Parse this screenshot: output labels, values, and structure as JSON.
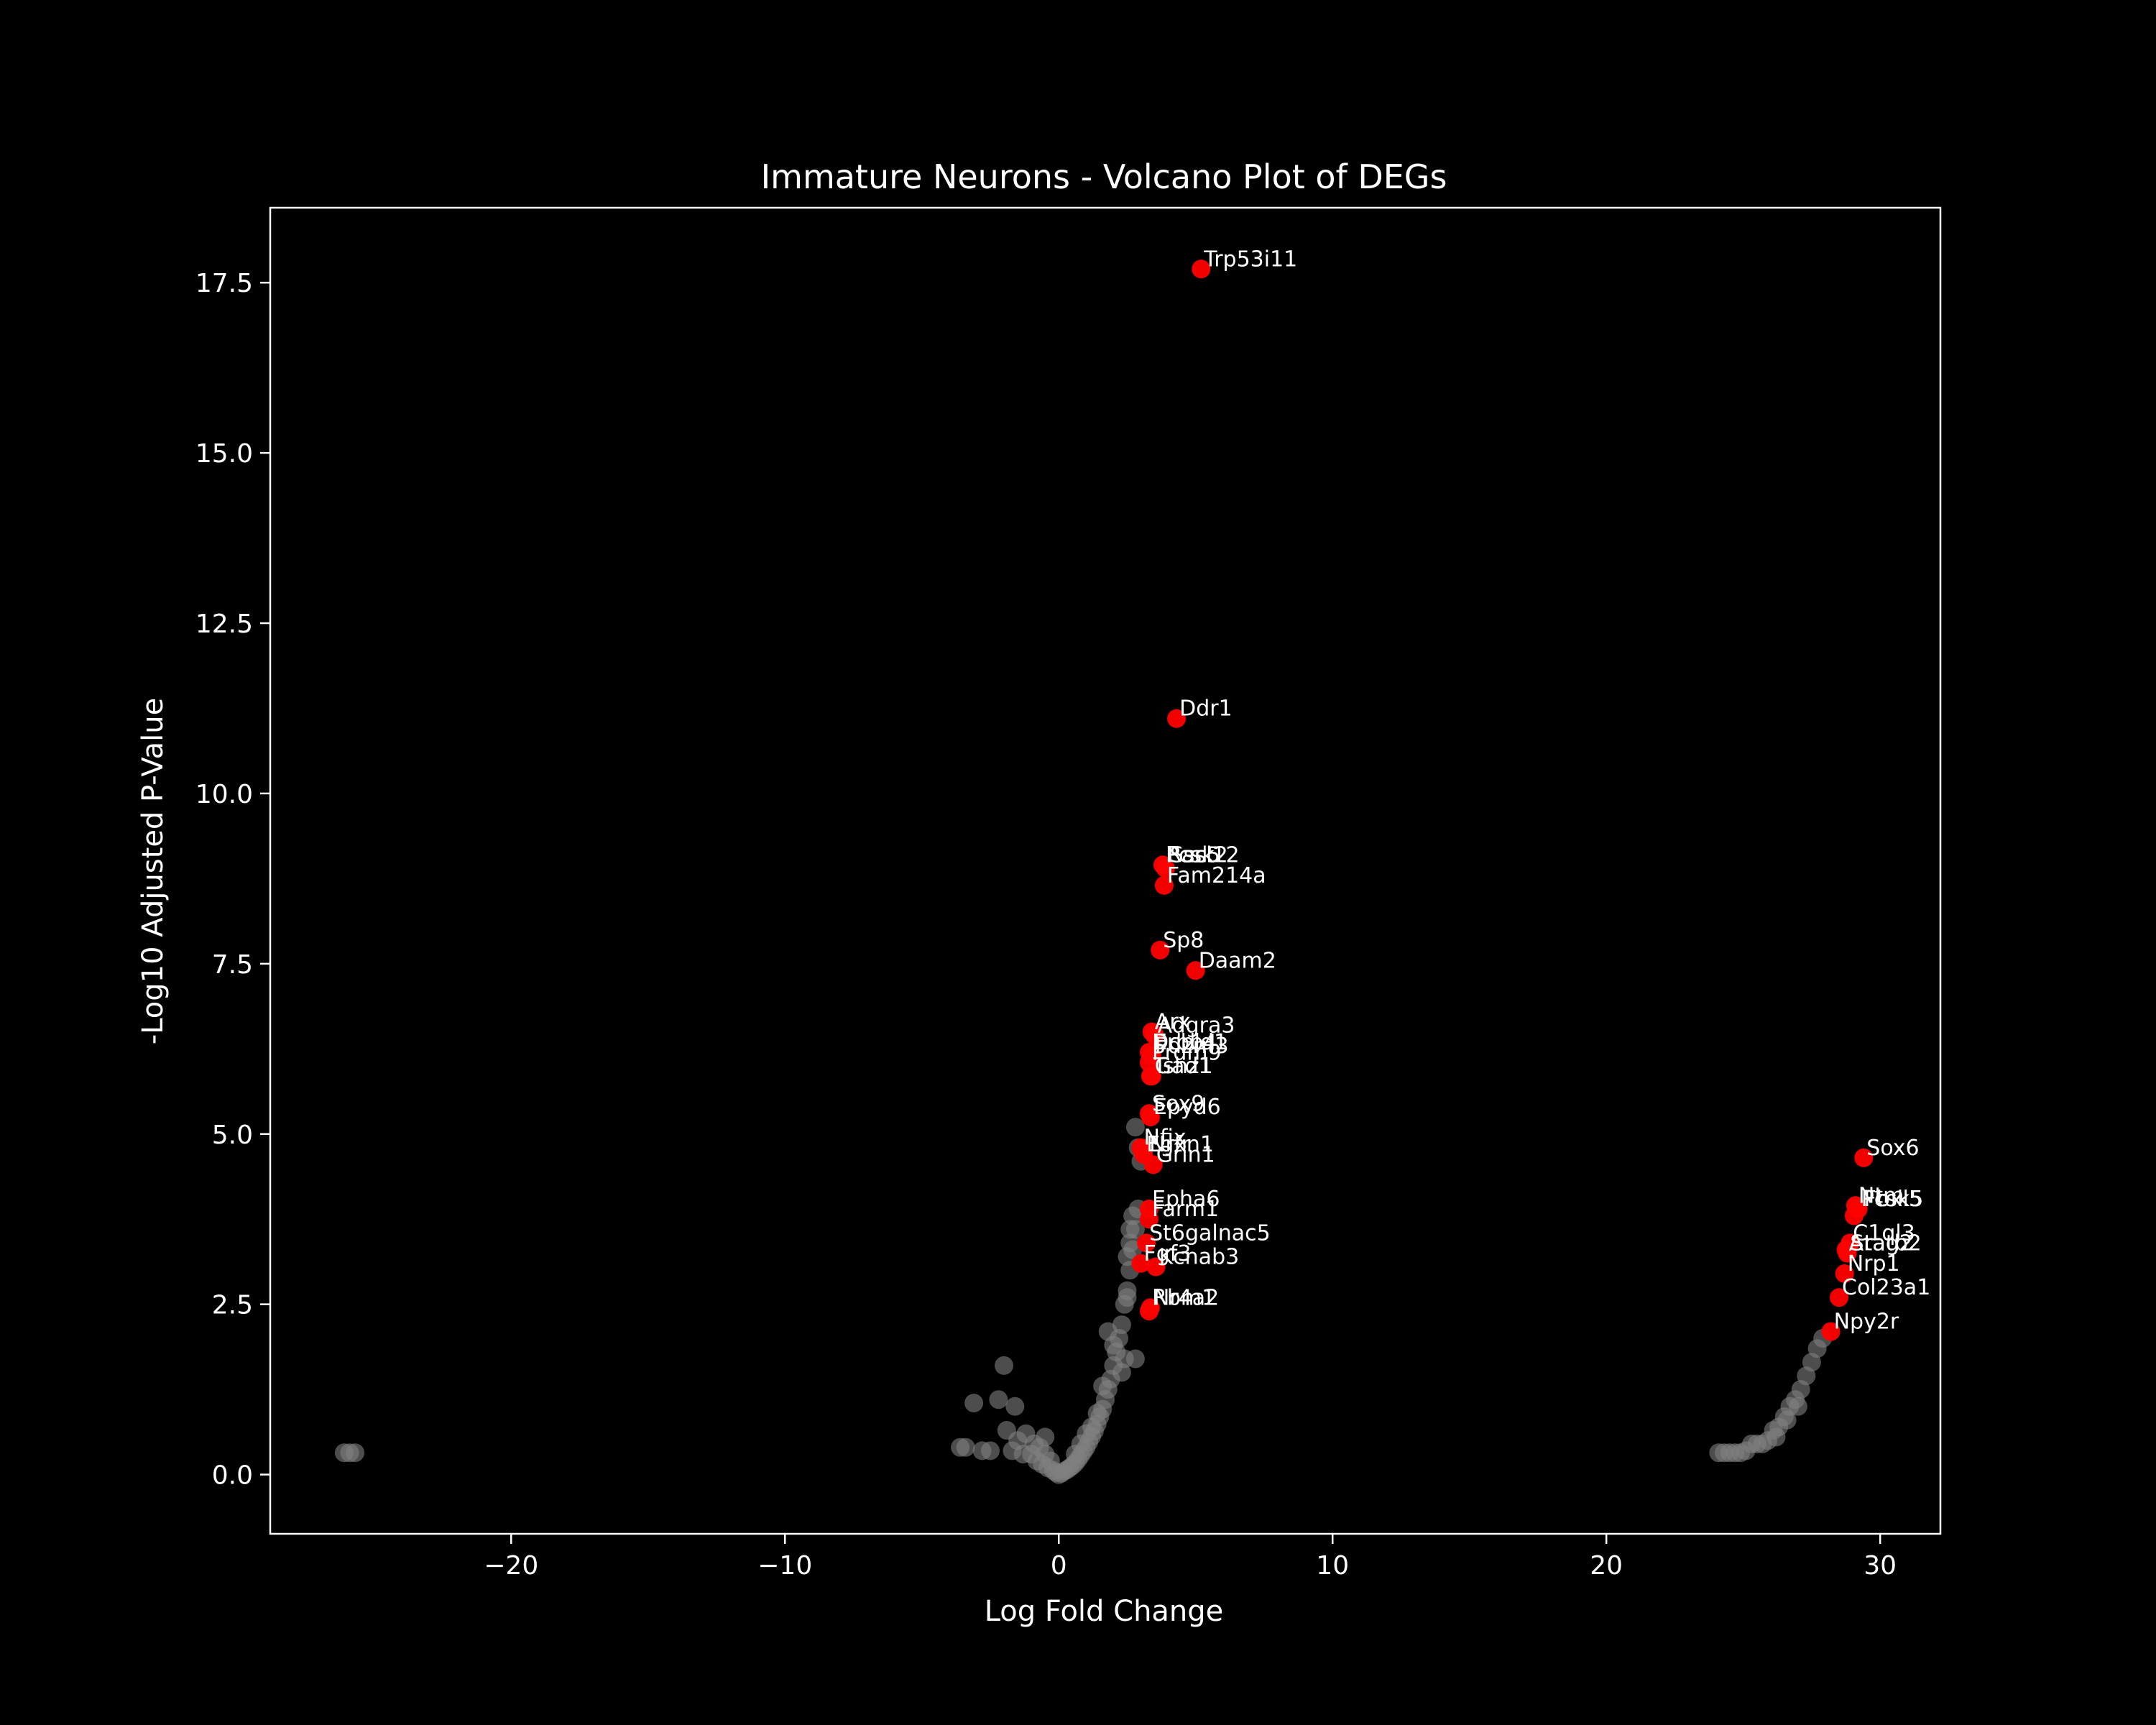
{
  "chart_data": {
    "type": "scatter",
    "title": "Immature Neurons - Volcano Plot of DEGs",
    "xlabel": "Log Fold Change",
    "ylabel": "-Log10 Adjusted P-Value",
    "xlim": [
      -28.8,
      32.2
    ],
    "ylim": [
      -0.87,
      18.6
    ],
    "xticks": [
      -20,
      -10,
      0,
      10,
      20,
      30
    ],
    "xtick_labels": [
      "−20",
      "−10",
      "0",
      "10",
      "20",
      "30"
    ],
    "yticks": [
      0.0,
      2.5,
      5.0,
      7.5,
      10.0,
      12.5,
      15.0,
      17.5
    ],
    "ytick_labels": [
      "0.0",
      "2.5",
      "5.0",
      "7.5",
      "10.0",
      "12.5",
      "15.0",
      "17.5"
    ],
    "grid": false,
    "colors": {
      "background": "#000000",
      "non_significant": "#808080",
      "significant": "#ff0000",
      "text": "#ffffff"
    },
    "series": [
      {
        "color": "#808080",
        "points": [
          [
            -26.1,
            0.32
          ],
          [
            -25.9,
            0.32
          ],
          [
            -25.7,
            0.32
          ],
          [
            -3.6,
            0.4
          ],
          [
            -3.4,
            0.4
          ],
          [
            -3.1,
            1.05
          ],
          [
            -2.8,
            0.35
          ],
          [
            -2.5,
            0.35
          ],
          [
            -2.2,
            1.1
          ],
          [
            -2.0,
            1.6
          ],
          [
            -1.9,
            0.65
          ],
          [
            -1.7,
            0.35
          ],
          [
            -1.6,
            1.0
          ],
          [
            -1.5,
            0.5
          ],
          [
            -1.3,
            0.3
          ],
          [
            -1.2,
            0.6
          ],
          [
            -1.0,
            0.3
          ],
          [
            -0.9,
            0.45
          ],
          [
            -0.8,
            0.2
          ],
          [
            -0.7,
            0.4
          ],
          [
            -0.6,
            0.15
          ],
          [
            -0.5,
            0.3
          ],
          [
            -0.4,
            0.1
          ],
          [
            -0.3,
            0.2
          ],
          [
            -0.2,
            0.06
          ],
          [
            -0.1,
            0.03
          ],
          [
            0.0,
            0.0
          ],
          [
            0.1,
            0.02
          ],
          [
            0.2,
            0.05
          ],
          [
            0.3,
            0.07
          ],
          [
            0.4,
            0.1
          ],
          [
            0.5,
            0.13
          ],
          [
            0.6,
            0.17
          ],
          [
            0.7,
            0.22
          ],
          [
            0.8,
            0.28
          ],
          [
            0.9,
            0.34
          ],
          [
            1.0,
            0.4
          ],
          [
            1.1,
            0.48
          ],
          [
            1.2,
            0.56
          ],
          [
            1.3,
            0.64
          ],
          [
            1.4,
            0.74
          ],
          [
            1.5,
            0.85
          ],
          [
            1.6,
            0.96
          ],
          [
            1.7,
            1.1
          ],
          [
            1.8,
            1.25
          ],
          [
            1.9,
            1.4
          ],
          [
            2.0,
            1.6
          ],
          [
            2.1,
            1.8
          ],
          [
            2.2,
            2.0
          ],
          [
            2.3,
            2.2
          ],
          [
            2.4,
            2.5
          ],
          [
            2.5,
            2.7
          ],
          [
            2.6,
            3.0
          ],
          [
            2.7,
            3.3
          ],
          [
            2.8,
            3.6
          ],
          [
            2.9,
            3.9
          ],
          [
            1.8,
            2.1
          ],
          [
            2.0,
            1.9
          ],
          [
            2.4,
            1.7
          ],
          [
            2.8,
            1.7
          ],
          [
            1.6,
            1.3
          ],
          [
            2.3,
            1.5
          ],
          [
            2.5,
            3.2
          ],
          [
            2.6,
            3.4
          ],
          [
            2.7,
            3.8
          ],
          [
            2.9,
            4.8
          ],
          [
            2.8,
            5.1
          ],
          [
            3.0,
            4.6
          ],
          [
            2.6,
            3.6
          ],
          [
            2.5,
            2.6
          ],
          [
            1.4,
            0.9
          ],
          [
            1.2,
            0.7
          ],
          [
            1.0,
            0.6
          ],
          [
            0.8,
            0.45
          ],
          [
            0.6,
            0.3
          ],
          [
            -0.5,
            0.55
          ],
          [
            24.1,
            0.32
          ],
          [
            24.3,
            0.32
          ],
          [
            24.5,
            0.32
          ],
          [
            24.7,
            0.32
          ],
          [
            24.9,
            0.32
          ],
          [
            25.1,
            0.35
          ],
          [
            25.3,
            0.45
          ],
          [
            25.5,
            0.45
          ],
          [
            25.7,
            0.45
          ],
          [
            25.9,
            0.5
          ],
          [
            26.1,
            0.65
          ],
          [
            26.3,
            0.7
          ],
          [
            26.5,
            0.85
          ],
          [
            26.7,
            1.0
          ],
          [
            26.9,
            1.1
          ],
          [
            27.1,
            1.25
          ],
          [
            27.3,
            1.45
          ],
          [
            27.5,
            1.65
          ],
          [
            27.7,
            1.85
          ],
          [
            27.9,
            2.0
          ],
          [
            26.2,
            0.55
          ],
          [
            26.6,
            0.8
          ],
          [
            27.0,
            1.0
          ]
        ]
      },
      {
        "color": "#ff0000",
        "points": [
          [
            5.2,
            17.7
          ],
          [
            4.3,
            11.1
          ],
          [
            3.8,
            8.95
          ],
          [
            3.9,
            8.9
          ],
          [
            3.85,
            8.65
          ],
          [
            3.7,
            7.7
          ],
          [
            5.0,
            7.4
          ],
          [
            3.4,
            6.5
          ],
          [
            3.5,
            6.45
          ],
          [
            3.3,
            6.2
          ],
          [
            3.4,
            6.15
          ],
          [
            3.3,
            6.05
          ],
          [
            3.35,
            5.85
          ],
          [
            3.4,
            5.85
          ],
          [
            3.3,
            5.3
          ],
          [
            3.35,
            5.25
          ],
          [
            3.0,
            4.8
          ],
          [
            3.1,
            4.7
          ],
          [
            3.45,
            4.55
          ],
          [
            3.3,
            3.9
          ],
          [
            3.3,
            3.75
          ],
          [
            3.2,
            3.4
          ],
          [
            3.0,
            3.1
          ],
          [
            3.55,
            3.05
          ],
          [
            3.35,
            2.45
          ],
          [
            3.3,
            2.4
          ],
          [
            29.4,
            4.65
          ],
          [
            29.1,
            3.95
          ],
          [
            29.2,
            3.9
          ],
          [
            29.05,
            3.8
          ],
          [
            28.9,
            3.4
          ],
          [
            28.75,
            3.3
          ],
          [
            28.8,
            3.25
          ],
          [
            28.7,
            2.95
          ],
          [
            28.5,
            2.6
          ],
          [
            28.2,
            2.1
          ]
        ]
      }
    ],
    "annotations": [
      {
        "text": "Trp53i11",
        "x": 5.2,
        "y": 17.7
      },
      {
        "text": "Ddr1",
        "x": 4.3,
        "y": 11.1
      },
      {
        "text": "Pcsk2",
        "x": 3.8,
        "y": 8.95
      },
      {
        "text": "Rasl12",
        "x": 3.85,
        "y": 8.95
      },
      {
        "text": "Ssc5",
        "x": 3.95,
        "y": 8.95
      },
      {
        "text": "Fam214a",
        "x": 3.85,
        "y": 8.65
      },
      {
        "text": "Sp8",
        "x": 3.7,
        "y": 7.7
      },
      {
        "text": "Daam2",
        "x": 5.0,
        "y": 7.4
      },
      {
        "text": "Arx",
        "x": 3.4,
        "y": 6.5
      },
      {
        "text": "Adgra3",
        "x": 3.5,
        "y": 6.45
      },
      {
        "text": "Dcbld1",
        "x": 3.3,
        "y": 6.2
      },
      {
        "text": "Erbb4",
        "x": 3.35,
        "y": 6.2
      },
      {
        "text": "Pdzrn3",
        "x": 3.4,
        "y": 6.15
      },
      {
        "text": "Prdm9",
        "x": 3.3,
        "y": 6.05
      },
      {
        "text": "Tshz1",
        "x": 3.35,
        "y": 5.85
      },
      {
        "text": "Gad1",
        "x": 3.4,
        "y": 5.85
      },
      {
        "text": "Sox9",
        "x": 3.3,
        "y": 5.3
      },
      {
        "text": "Epyd6",
        "x": 3.35,
        "y": 5.25
      },
      {
        "text": "Nfix",
        "x": 3.0,
        "y": 4.8
      },
      {
        "text": "Egfr",
        "x": 3.1,
        "y": 4.7
      },
      {
        "text": "Nrxn1",
        "x": 3.2,
        "y": 4.7
      },
      {
        "text": "Grin1",
        "x": 3.45,
        "y": 4.55
      },
      {
        "text": "Epha6",
        "x": 3.3,
        "y": 3.9
      },
      {
        "text": "Farm1",
        "x": 3.3,
        "y": 3.75
      },
      {
        "text": "St6galnac5",
        "x": 3.2,
        "y": 3.4
      },
      {
        "text": "Fgf3",
        "x": 3.0,
        "y": 3.1
      },
      {
        "text": "Kcnab3",
        "x": 3.55,
        "y": 3.05
      },
      {
        "text": "Nr4a2",
        "x": 3.35,
        "y": 2.45
      },
      {
        "text": "Rbm1",
        "x": 3.3,
        "y": 2.45
      },
      {
        "text": "Sox6",
        "x": 29.4,
        "y": 4.65
      },
      {
        "text": "Ntm",
        "x": 29.1,
        "y": 3.95
      },
      {
        "text": "Pcsk5",
        "x": 29.2,
        "y": 3.9
      },
      {
        "text": "Fbxl5",
        "x": 29.3,
        "y": 3.9
      },
      {
        "text": "C1ql3",
        "x": 28.9,
        "y": 3.4
      },
      {
        "text": "Aratb2",
        "x": 28.75,
        "y": 3.25
      },
      {
        "text": "Stag2",
        "x": 28.8,
        "y": 3.25
      },
      {
        "text": "Nrp1",
        "x": 28.7,
        "y": 2.95
      },
      {
        "text": "Col23a1",
        "x": 28.5,
        "y": 2.6
      },
      {
        "text": "Npy2r",
        "x": 28.2,
        "y": 2.1
      }
    ]
  }
}
